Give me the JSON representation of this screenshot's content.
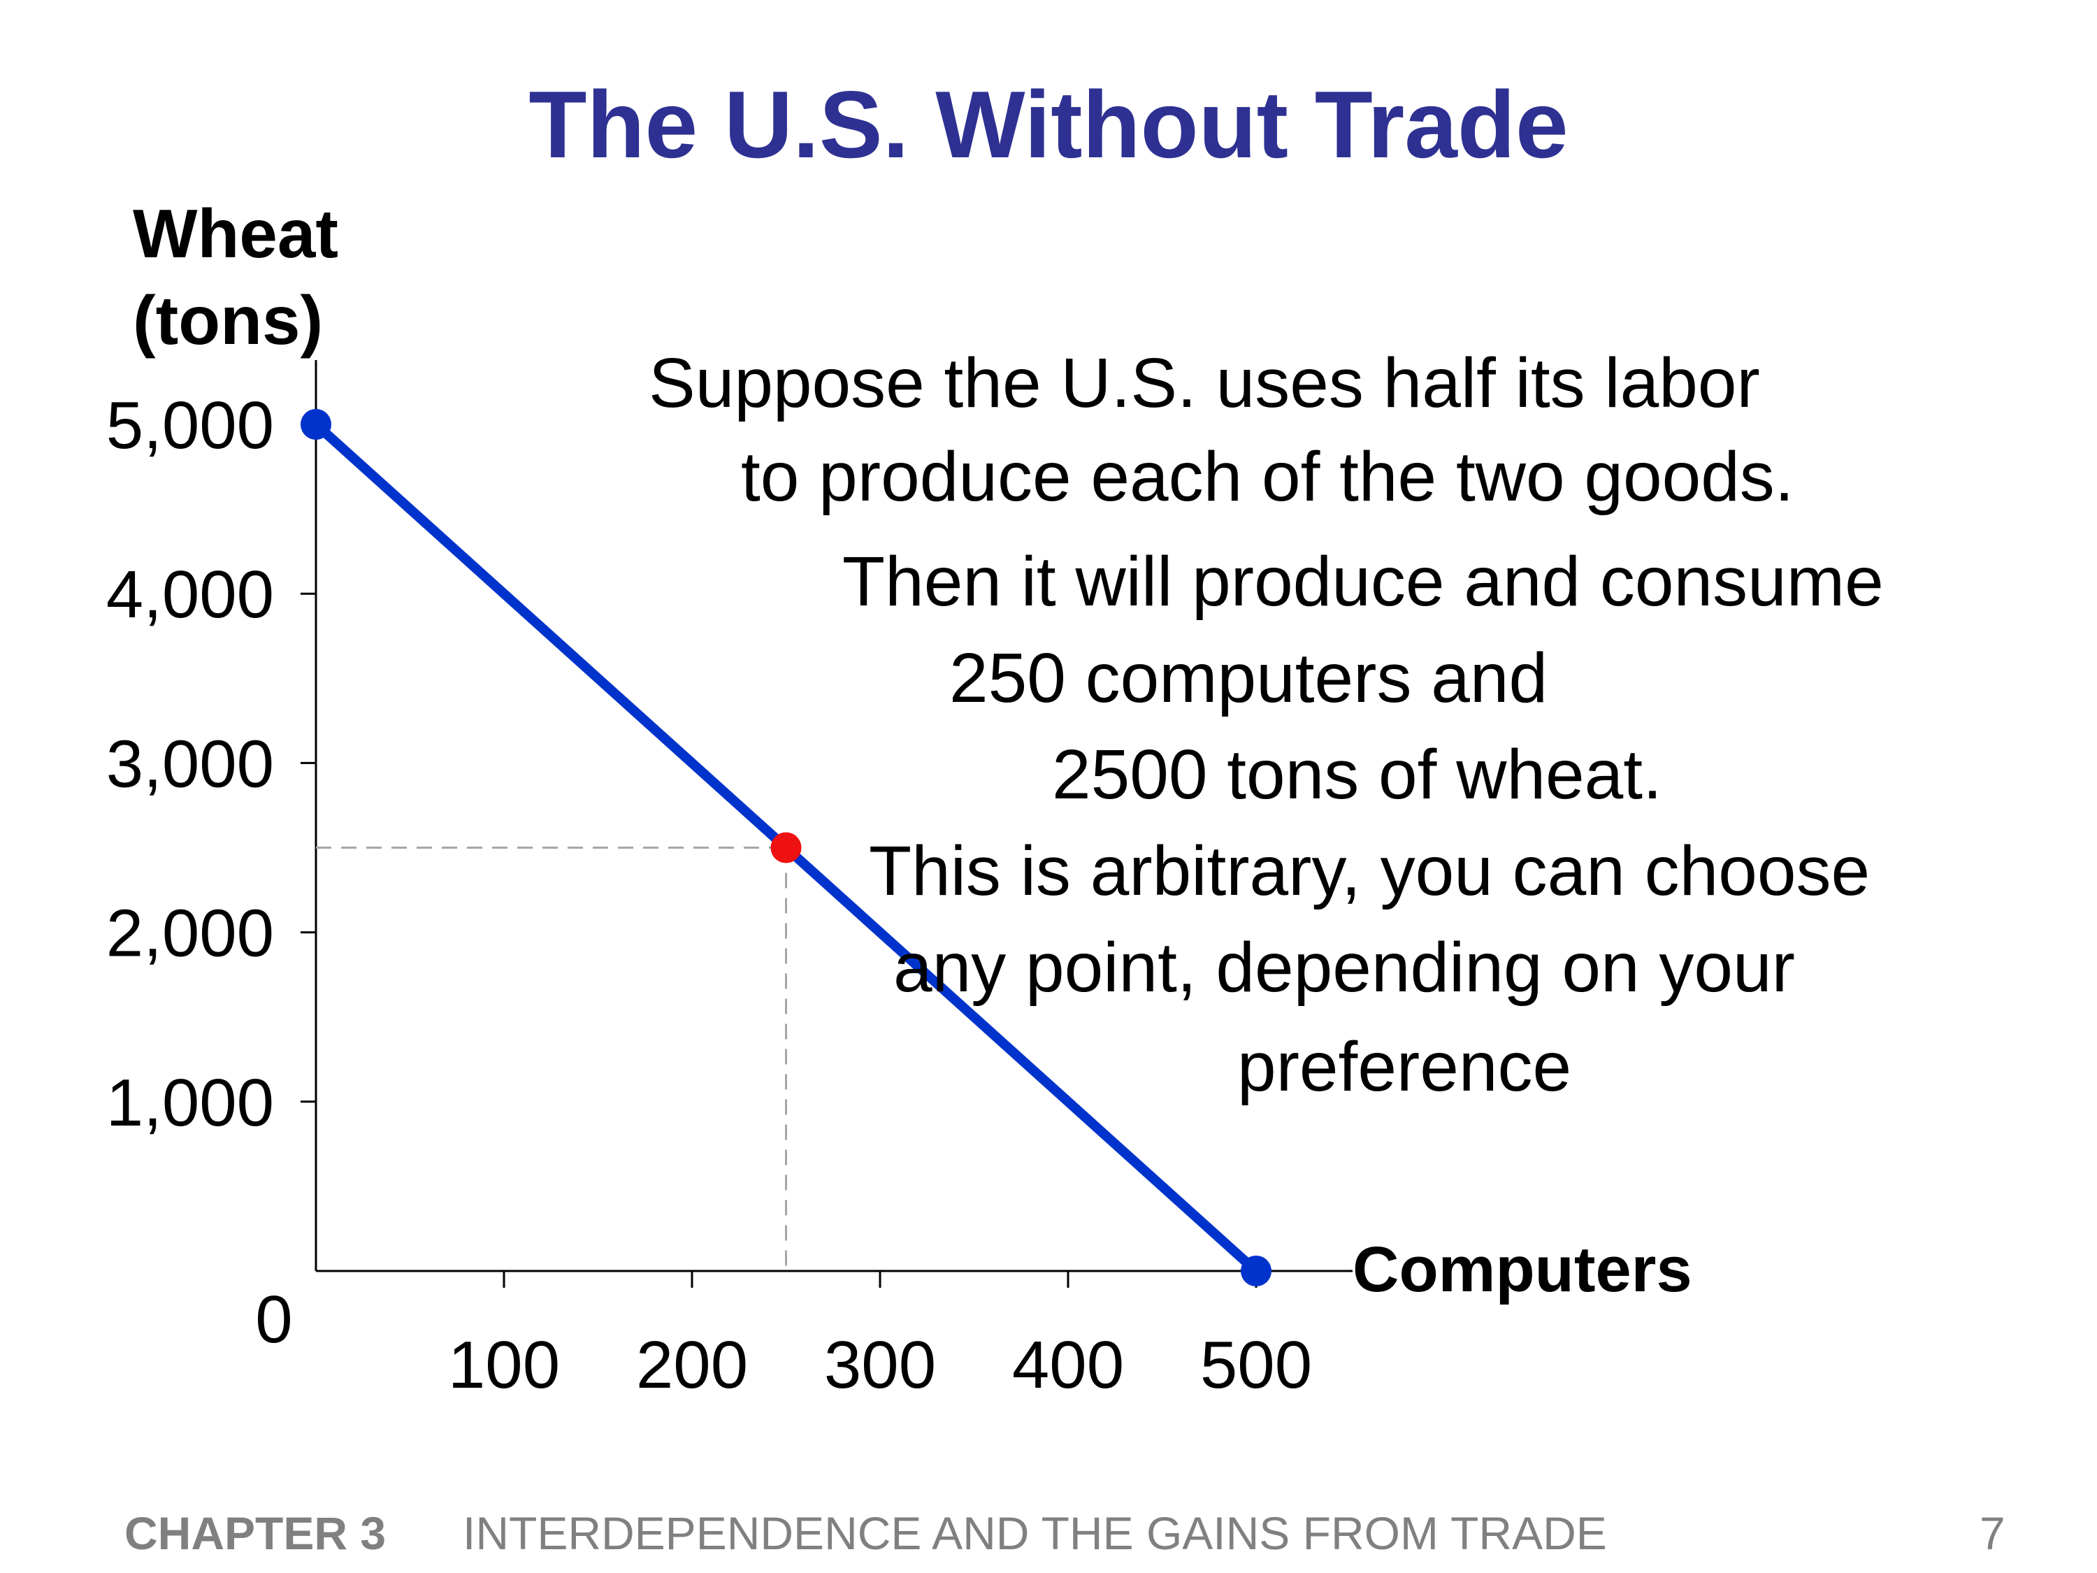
{
  "slide": {
    "title": "The U.S. Without Trade",
    "footer": {
      "chapter": "CHAPTER 3",
      "title": "INTERDEPENDENCE AND THE GAINS FROM TRADE",
      "page": "7"
    }
  },
  "annotation": {
    "lines": [
      "Suppose the U.S. uses half its labor",
      "to produce each of the two goods.",
      "Then it will produce and consume",
      "250 computers  and",
      "2500 tons of wheat.",
      "This is arbitrary, you can choose",
      "any point, depending on your",
      "preference"
    ]
  },
  "chart_data": {
    "type": "line",
    "ylabel_lines": [
      "Wheat",
      "(tons)"
    ],
    "xlabel": "Computers",
    "xlim": [
      0,
      500
    ],
    "ylim": [
      0,
      5000
    ],
    "x_ticks": [
      100,
      200,
      300,
      400,
      500
    ],
    "x_tick_labels": [
      "100",
      "200",
      "300",
      "400",
      "500"
    ],
    "y_ticks": [
      1000,
      2000,
      3000,
      4000,
      5000
    ],
    "y_tick_labels": [
      "1,000",
      "2,000",
      "3,000",
      "4,000",
      "5,000"
    ],
    "origin_label": "0",
    "grid": false,
    "series": [
      {
        "x": [
          0,
          500
        ],
        "y": [
          5000,
          0
        ],
        "color": "#0033cc",
        "endpoint_color": "#0033cc"
      }
    ],
    "highlight_point": {
      "x": 250,
      "y": 2500,
      "color": "#ee1111",
      "guide_color": "#a6a6a6"
    }
  }
}
